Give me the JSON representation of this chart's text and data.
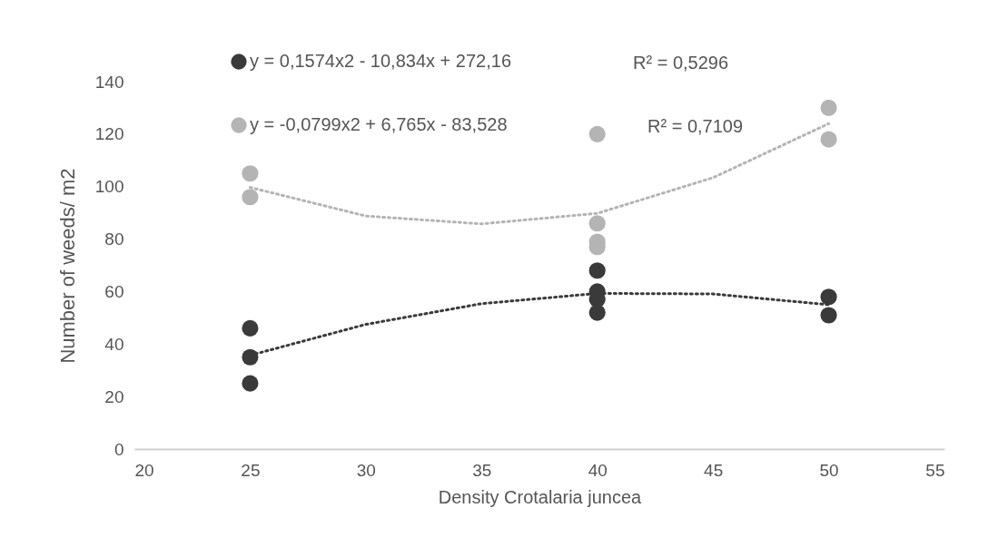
{
  "chart_data": {
    "type": "scatter",
    "xlabel": "Density Crotalaria juncea",
    "ylabel": "Number of weeds/ m2",
    "xlim": [
      20,
      55
    ],
    "xticks": [
      20,
      25,
      30,
      35,
      40,
      45,
      50,
      55
    ],
    "ylim": [
      0,
      140
    ],
    "yticks": [
      0,
      20,
      40,
      60,
      80,
      100,
      120,
      140
    ],
    "grid": false,
    "legend": "top",
    "annotations": [
      "R² = 0,5296",
      "R² = 0,7109"
    ],
    "series": [
      {
        "name": "y = 0,1574x2 - 10,834x + 272,16",
        "color": "#3a3a3a",
        "x": [
          25,
          25,
          25,
          40,
          40,
          40,
          40,
          50,
          50
        ],
        "marker": "circle",
        "values": [
          46,
          35,
          25,
          68,
          60,
          57,
          52,
          58,
          51
        ]
      },
      {
        "name": "y = -0,0799x2 + 6,765x - 83,528",
        "color": "#b4b4b4",
        "x": [
          25,
          25,
          40,
          40,
          40,
          40,
          50,
          50
        ],
        "marker": "circle",
        "values": [
          105,
          96,
          120,
          86,
          79,
          77,
          130,
          118
        ]
      },
      {
        "type": "line",
        "line_style": "dotted",
        "marker": "none",
        "color": "#3a3a3a",
        "x": [
          25,
          30,
          35,
          40,
          45,
          50
        ],
        "values": [
          35.7,
          47.5,
          55.4,
          59.3,
          59.1,
          55
        ]
      },
      {
        "type": "line",
        "line_style": "dotted",
        "marker": "none",
        "color": "#b4b4b4",
        "x": [
          25,
          30,
          35,
          40,
          45,
          50
        ],
        "values": [
          99.7,
          88.8,
          85.8,
          89.8,
          103.4,
          124
        ]
      }
    ]
  }
}
